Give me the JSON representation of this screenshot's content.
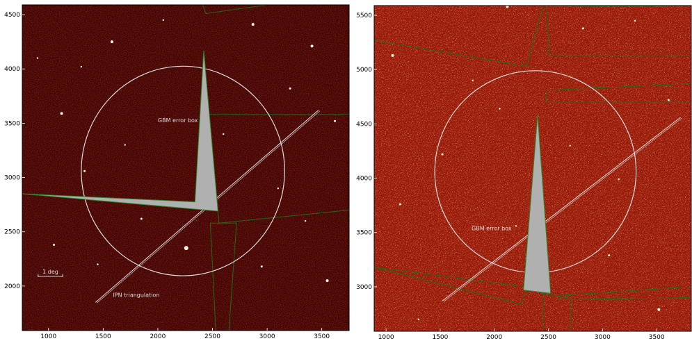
{
  "chart_data": [
    {
      "type": "scatter",
      "title": "",
      "xlabel": "",
      "ylabel": "",
      "xlim": [
        760,
        3750
      ],
      "ylim": [
        1590,
        4590
      ],
      "xticks": [
        1000,
        1500,
        2000,
        2500,
        3000,
        3500
      ],
      "yticks": [
        2000,
        2500,
        3000,
        3500,
        4000,
        4500
      ],
      "background": "dark-red star field",
      "colors": {
        "frame": "#000000",
        "circle": "#dddddd",
        "wedge": "#b0b0b0",
        "footprint": "#1f6b1f",
        "ipn": "#dddddd"
      },
      "gbm_circle": {
        "center": [
          2230,
          3060
        ],
        "radius_x": 930,
        "radius_y": 965
      },
      "gbm_label": {
        "text": "GBM error box",
        "at": [
          2000,
          3510
        ]
      },
      "ipn_label": {
        "text": "IPN triangulation",
        "at": [
          1590,
          1900
        ]
      },
      "scale_bar": {
        "text": "1 deg",
        "from": [
          905,
          2090
        ],
        "to": [
          1130,
          2090
        ]
      },
      "ipn_line": {
        "from": [
          1430,
          1850
        ],
        "to": [
          3470,
          3620
        ]
      },
      "wedge_polygon": [
        [
          760,
          2850
        ],
        [
          2340,
          2775
        ],
        [
          2420,
          4170
        ],
        [
          2550,
          2690
        ]
      ],
      "footprints": [
        [
          [
            2470,
            3580
          ],
          [
            3750,
            3580
          ],
          [
            3750,
            2700
          ],
          [
            2560,
            2580
          ]
        ],
        [
          [
            2480,
            2580
          ],
          [
            2720,
            2580
          ],
          [
            2650,
            1590
          ],
          [
            2530,
            1590
          ]
        ],
        [
          [
            2410,
            4590
          ],
          [
            2440,
            4510
          ],
          [
            3000,
            4590
          ]
        ]
      ],
      "stars": [
        [
          2260,
          2350,
          3
        ],
        [
          1120,
          3590,
          2
        ],
        [
          1580,
          4250,
          2
        ],
        [
          3410,
          4210,
          2
        ],
        [
          3550,
          2050,
          2
        ],
        [
          2870,
          4410,
          2
        ],
        [
          1330,
          3060,
          1.5
        ],
        [
          1850,
          2620,
          1.5
        ],
        [
          3210,
          3820,
          1.5
        ],
        [
          3620,
          3520,
          1.5
        ],
        [
          2950,
          2180,
          1.5
        ],
        [
          1050,
          2380,
          1.5
        ],
        [
          1300,
          4020,
          1.2
        ],
        [
          2600,
          3400,
          1.2
        ],
        [
          3100,
          2900,
          1.2
        ],
        [
          1700,
          3300,
          1.2
        ],
        [
          2050,
          4450,
          1.2
        ],
        [
          3350,
          2600,
          1.2
        ],
        [
          1450,
          2200,
          1.2
        ],
        [
          900,
          4100,
          1.2
        ]
      ]
    },
    {
      "type": "scatter",
      "title": "",
      "xlabel": "",
      "ylabel": "",
      "xlim": [
        890,
        3820
      ],
      "ylim": [
        2590,
        5590
      ],
      "xticks": [
        1000,
        1500,
        2000,
        2500,
        3000,
        3500
      ],
      "yticks": [
        3000,
        3500,
        4000,
        4500,
        5000,
        5500
      ],
      "background": "bright red star field",
      "colors": {
        "frame": "#000000",
        "circle": "#dddddd",
        "wedge": "#b0b0b0",
        "footprint": "#1f6b1f",
        "ipn": "#dddddd"
      },
      "gbm_circle": {
        "center": [
          2380,
          4060
        ],
        "radius_x": 930,
        "radius_y": 930
      },
      "gbm_label": {
        "text": "GBM error box",
        "at": [
          1790,
          3520
        ]
      },
      "ipn_line": {
        "from": [
          1520,
          2870
        ],
        "to": [
          3720,
          4560
        ]
      },
      "wedge_polygon": [
        [
          2400,
          4580
        ],
        [
          2520,
          2940
        ],
        [
          2270,
          2970
        ]
      ],
      "footprints": [
        [
          [
            890,
            5270
          ],
          [
            2300,
            5030
          ],
          [
            2450,
            5590
          ],
          [
            890,
            5590
          ]
        ],
        [
          [
            2480,
            5580
          ],
          [
            2510,
            5130
          ],
          [
            3820,
            5130
          ],
          [
            3820,
            5590
          ]
        ],
        [
          [
            2480,
            4810
          ],
          [
            3820,
            4870
          ],
          [
            3820,
            4700
          ],
          [
            2480,
            4700
          ]
        ],
        [
          [
            890,
            3180
          ],
          [
            2250,
            2840
          ],
          [
            2300,
            3000
          ],
          [
            890,
            3180
          ]
        ],
        [
          [
            2450,
            2940
          ],
          [
            2710,
            2890
          ],
          [
            2700,
            2590
          ],
          [
            2450,
            2590
          ]
        ],
        [
          [
            2600,
            2920
          ],
          [
            3820,
            3000
          ],
          [
            3820,
            2900
          ],
          [
            2600,
            2880
          ]
        ]
      ],
      "stars": [
        [
          2120,
          5580,
          2
        ],
        [
          1060,
          5130,
          2
        ],
        [
          3520,
          2790,
          2
        ],
        [
          1520,
          4220,
          1.5
        ],
        [
          3060,
          3290,
          1.5
        ],
        [
          2820,
          5380,
          1.5
        ],
        [
          1130,
          3760,
          1.5
        ],
        [
          3610,
          4720,
          1.5
        ],
        [
          2200,
          3560,
          1.2
        ],
        [
          2700,
          4300,
          1.2
        ],
        [
          1800,
          4900,
          1.2
        ],
        [
          3300,
          5450,
          1.2
        ],
        [
          1300,
          2700,
          1.2
        ],
        [
          3150,
          3990,
          1.2
        ],
        [
          2050,
          4640,
          1.2
        ]
      ]
    }
  ]
}
